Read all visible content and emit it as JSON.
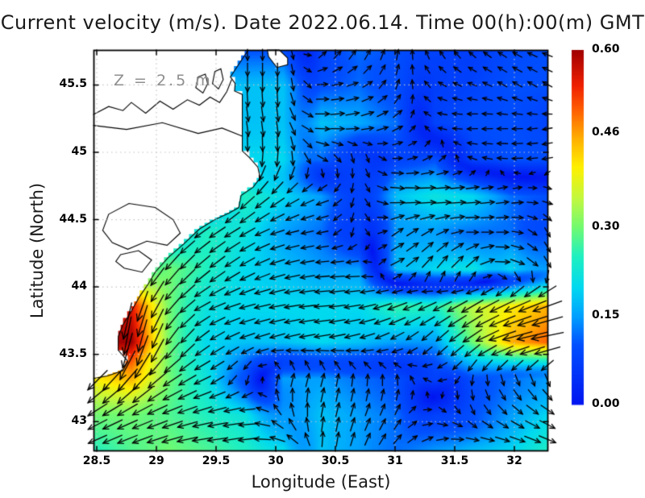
{
  "title": "Current velocity (m/s). Date 2022.06.14. Time 00(h):00(m) GMT",
  "annotation": "Z = 2.5 m",
  "axes": {
    "x": {
      "label": "Longitude (East)",
      "range": [
        28.473,
        32.284
      ],
      "tick_values": [
        28.5,
        29,
        29.5,
        30,
        30.5,
        31,
        31.5,
        32
      ],
      "tick_labels": [
        "28.5",
        "29",
        "29.5",
        "30",
        "30.5",
        "31",
        "31.5",
        "32"
      ]
    },
    "y": {
      "label": "Latitude (North)",
      "range": [
        42.78,
        45.76
      ],
      "tick_values": [
        45.5,
        45,
        44.5,
        44,
        43.5,
        43
      ],
      "tick_labels": [
        "45.5",
        "45",
        "44.5",
        "44",
        "43.5",
        "43"
      ]
    }
  },
  "colorbar": {
    "min": 0.0,
    "max": 0.6,
    "units": "m/s",
    "tick_values": [
      0.0,
      0.15,
      0.3,
      0.46,
      0.6
    ],
    "tick_labels": [
      "0.00",
      "0.15",
      "0.30",
      "0.46",
      "0.60"
    ],
    "stops": [
      [
        0.0,
        "#0014f0"
      ],
      [
        0.17,
        "#0050ff"
      ],
      [
        0.25,
        "#00a0ff"
      ],
      [
        0.33,
        "#00d8f0"
      ],
      [
        0.42,
        "#20f0c0"
      ],
      [
        0.5,
        "#70fa70"
      ],
      [
        0.58,
        "#c0f840"
      ],
      [
        0.67,
        "#fff000"
      ],
      [
        0.75,
        "#ffb000"
      ],
      [
        0.83,
        "#ff6000"
      ],
      [
        0.9,
        "#f02000"
      ],
      [
        1.0,
        "#a00000"
      ]
    ]
  },
  "chart_data": {
    "type": "heatmap",
    "overlay": "quiver",
    "title": "Current velocity (m/s). Date 2022.06.14. Time 00(h):00(m) GMT",
    "xlabel": "Longitude (East)",
    "ylabel": "Latitude (North)",
    "units": "m/s",
    "speed_max": 0.6,
    "lon": [
      28.47,
      28.79,
      29.11,
      29.42,
      29.74,
      30.06,
      30.38,
      30.69,
      31.01,
      31.33,
      31.65,
      31.96,
      32.28
    ],
    "lat": [
      45.76,
      45.49,
      45.22,
      44.95,
      44.68,
      44.41,
      44.14,
      43.87,
      43.6,
      43.32,
      43.05,
      42.78
    ],
    "u": [
      [
        0,
        0,
        0,
        0,
        0,
        0,
        0.057,
        0.06,
        0.017,
        -0.04,
        -0.049,
        -0.078,
        -0.094
      ],
      [
        0,
        0,
        0,
        0,
        0,
        0,
        0.1,
        0.113,
        0.034,
        -0.061,
        -0.075,
        -0.087,
        -0.087
      ],
      [
        0.031,
        0.031,
        0.031,
        0.031,
        0.031,
        0.031,
        0.18,
        0.158,
        0.104,
        -0.079,
        -0.1,
        -0.1,
        -0.079
      ],
      [
        -0.017,
        -0.017,
        -0.017,
        -0.017,
        -0.017,
        -0.017,
        0.104,
        0,
        0.08,
        0.087,
        -0.075,
        -0.1,
        -0.098
      ],
      [
        -0.096,
        -0.096,
        -0.096,
        -0.096,
        -0.177,
        -0.164,
        -0.141,
        0,
        0.179,
        0.22,
        0.199,
        0.118,
        0.098
      ],
      [
        -0.153,
        -0.153,
        -0.153,
        -0.205,
        -0.19,
        -0.145,
        -0.118,
        0,
        0.123,
        0.13,
        0.12,
        0.12,
        0.05
      ],
      [
        -0.161,
        -0.161,
        -0.193,
        -0.192,
        -0.173,
        -0.174,
        -0.149,
        -0.15,
        0.163,
        0.115,
        0.156,
        0.193,
        0.075
      ],
      [
        -0.142,
        -0.142,
        -0.193,
        -0.199,
        -0.193,
        -0.197,
        -0.199,
        -0.197,
        -0.254,
        -0.227,
        -0.303,
        -0.363,
        -0.423
      ],
      [
        -0.104,
        -0.104,
        -0.172,
        -0.164,
        -0.169,
        -0.174,
        -0.197,
        -0.174,
        -0.13,
        -0.096,
        -0.246,
        -0.435,
        -0.492
      ],
      [
        -0.283,
        -0.289,
        -0.246,
        -0.199,
        -0.017,
        0.039,
        0.039,
        0.01,
        -0.009,
        -0.079,
        -0.017,
        0.041,
        0.051
      ],
      [
        -0.26,
        -0.272,
        -0.263,
        -0.242,
        -0.219,
        -0.075,
        0.031,
        0.051,
        0.06,
        0.075,
        0.05,
        0.115,
        0.173
      ],
      [
        -0.235,
        -0.263,
        -0.29,
        -0.279,
        -0.246,
        -0.207,
        0,
        0.051,
        0.085,
        0.136,
        0.18,
        0.197,
        0.235
      ]
    ],
    "v": [
      [
        -0.1,
        -0.1,
        -0.1,
        -0.1,
        -0.1,
        -0.1,
        0.057,
        0.104,
        0.098,
        0.069,
        0.049,
        0.045,
        0.034
      ],
      [
        -0.18,
        -0.18,
        -0.18,
        -0.18,
        -0.18,
        -0.18,
        0,
        0.041,
        0.094,
        0.035,
        0.027,
        0.05,
        0.05
      ],
      [
        -0.177,
        -0.177,
        -0.177,
        -0.177,
        -0.177,
        -0.177,
        0,
        0.028,
        0.06,
        0.014,
        -0.009,
        0,
        -0.014
      ],
      [
        -0.199,
        -0.199,
        -0.199,
        -0.199,
        -0.199,
        -0.199,
        -0.06,
        -0.08,
        0,
        0.05,
        0.027,
        0,
        -0.017
      ],
      [
        -0.115,
        -0.115,
        -0.115,
        -0.115,
        -0.177,
        -0.115,
        -0.051,
        -0.08,
        -0.016,
        0,
        0.017,
        0.021,
        -0.017
      ],
      [
        -0.129,
        -0.129,
        -0.129,
        -0.143,
        -0.11,
        -0.039,
        -0.021,
        -0.08,
        0.086,
        0.075,
        0,
        0,
        -0.087
      ],
      [
        -0.192,
        -0.192,
        -0.23,
        -0.161,
        -0.1,
        -0.047,
        -0.013,
        0,
        0.076,
        0.164,
        0.156,
        -0.052,
        -0.13
      ],
      [
        -0.531,
        -0.531,
        -0.23,
        -0.093,
        -0.052,
        -0.035,
        -0.017,
        -0.035,
        -0.092,
        -0.106,
        -0.175,
        -0.169,
        -0.154
      ],
      [
        -0.591,
        -0.591,
        -0.246,
        -0.115,
        -0.062,
        -0.047,
        -0.035,
        -0.047,
        -0.075,
        -0.115,
        -0.172,
        -0.116,
        -0.087
      ],
      [
        -0.283,
        -0.345,
        -0.172,
        -0.093,
        -0.098,
        0.145,
        0.145,
        0.12,
        0.1,
        0.014,
        -0.098,
        -0.113,
        -0.141
      ],
      [
        -0.15,
        -0.127,
        -0.096,
        -0.065,
        -0.019,
        0.13,
        0.177,
        0.141,
        0.104,
        -0.027,
        -0.087,
        -0.096,
        -0.1
      ],
      [
        -0.086,
        -0.096,
        -0.078,
        -0.024,
        -0.043,
        0.038,
        0.18,
        0.141,
        0.085,
        0.063,
        0,
        -0.035,
        -0.086
      ]
    ],
    "map": {
      "coastline": [
        [
          29.77,
          45.76
        ],
        [
          29.62,
          45.56
        ],
        [
          29.66,
          45.51
        ],
        [
          29.655,
          45.455
        ],
        [
          29.72,
          45.43
        ],
        [
          29.72,
          45.01
        ],
        [
          29.78,
          44.96
        ],
        [
          29.85,
          44.89
        ],
        [
          29.87,
          44.81
        ],
        [
          29.81,
          44.74
        ],
        [
          29.71,
          44.68
        ],
        [
          29.69,
          44.59
        ],
        [
          29.61,
          44.55
        ],
        [
          29.49,
          44.5
        ],
        [
          29.36,
          44.43
        ],
        [
          29.23,
          44.32
        ],
        [
          29.1,
          44.22
        ],
        [
          28.99,
          44.11
        ],
        [
          28.93,
          44.02
        ],
        [
          28.86,
          43.93
        ],
        [
          28.79,
          43.82
        ],
        [
          28.72,
          43.72
        ],
        [
          28.68,
          43.63
        ],
        [
          28.68,
          43.53
        ],
        [
          28.76,
          43.45
        ],
        [
          28.72,
          43.38
        ],
        [
          28.59,
          43.34
        ],
        [
          28.47,
          43.32
        ]
      ],
      "spit": [
        [
          29.93,
          45.76
        ],
        [
          30.03,
          45.76
        ],
        [
          30.1,
          45.7
        ],
        [
          30.1,
          45.65
        ],
        [
          30.01,
          45.63
        ],
        [
          29.94,
          45.71
        ]
      ],
      "lagoons": [
        [
          [
            28.6,
            44.54
          ],
          [
            28.77,
            44.62
          ],
          [
            28.99,
            44.59
          ],
          [
            29.14,
            44.5
          ],
          [
            29.2,
            44.4
          ],
          [
            29.09,
            44.31
          ],
          [
            28.92,
            44.34
          ],
          [
            28.76,
            44.28
          ],
          [
            28.63,
            44.33
          ],
          [
            28.55,
            44.42
          ]
        ],
        [
          [
            28.7,
            44.24
          ],
          [
            28.85,
            44.27
          ],
          [
            28.96,
            44.2
          ],
          [
            28.88,
            44.11
          ],
          [
            28.73,
            44.14
          ],
          [
            28.66,
            44.19
          ]
        ],
        [
          [
            29.49,
            45.6
          ],
          [
            29.54,
            45.62
          ],
          [
            29.56,
            45.54
          ],
          [
            29.52,
            45.47
          ],
          [
            29.47,
            45.51
          ]
        ],
        [
          [
            29.35,
            45.56
          ],
          [
            29.41,
            45.58
          ],
          [
            29.43,
            45.51
          ],
          [
            29.39,
            45.44
          ],
          [
            29.33,
            45.48
          ]
        ]
      ],
      "inner_coast": [
        [
          28.47,
          45.28
        ],
        [
          28.6,
          45.34
        ],
        [
          28.72,
          45.31
        ],
        [
          28.79,
          45.37
        ],
        [
          28.91,
          45.29
        ],
        [
          29.03,
          45.38
        ],
        [
          29.14,
          45.32
        ],
        [
          29.26,
          45.39
        ],
        [
          29.36,
          45.35
        ],
        [
          29.45,
          45.41
        ],
        [
          29.53,
          45.37
        ],
        [
          29.59,
          45.45
        ],
        [
          29.63,
          45.54
        ]
      ],
      "river": [
        [
          28.47,
          45.2
        ],
        [
          28.75,
          45.17
        ],
        [
          29.05,
          45.22
        ],
        [
          29.35,
          45.14
        ],
        [
          29.55,
          45.18
        ],
        [
          29.72,
          45.12
        ]
      ]
    }
  }
}
